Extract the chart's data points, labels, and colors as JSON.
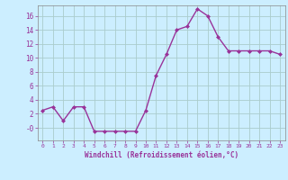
{
  "x": [
    0,
    1,
    2,
    3,
    4,
    5,
    6,
    7,
    8,
    9,
    10,
    11,
    12,
    13,
    14,
    15,
    16,
    17,
    18,
    19,
    20,
    21,
    22,
    23
  ],
  "y": [
    2.5,
    3.0,
    1.0,
    3.0,
    3.0,
    -0.5,
    -0.5,
    -0.5,
    -0.5,
    -0.5,
    2.5,
    7.5,
    10.5,
    14.0,
    14.5,
    17.0,
    16.0,
    13.0,
    11.0,
    11.0,
    11.0,
    11.0,
    11.0,
    10.5
  ],
  "line_color": "#993399",
  "marker": "D",
  "marker_size": 2,
  "bg_color": "#cceeff",
  "grid_color": "#aacccc",
  "xlabel": "Windchill (Refroidissement éolien,°C)",
  "xlabel_color": "#993399",
  "tick_color": "#993399",
  "ytick_labels": [
    "-0",
    "2",
    "4",
    "6",
    "8",
    "10",
    "12",
    "14",
    "16"
  ],
  "ytick_vals": [
    0,
    2,
    4,
    6,
    8,
    10,
    12,
    14,
    16
  ],
  "xlim": [
    -0.5,
    23.5
  ],
  "ylim": [
    -1.8,
    17.5
  ]
}
